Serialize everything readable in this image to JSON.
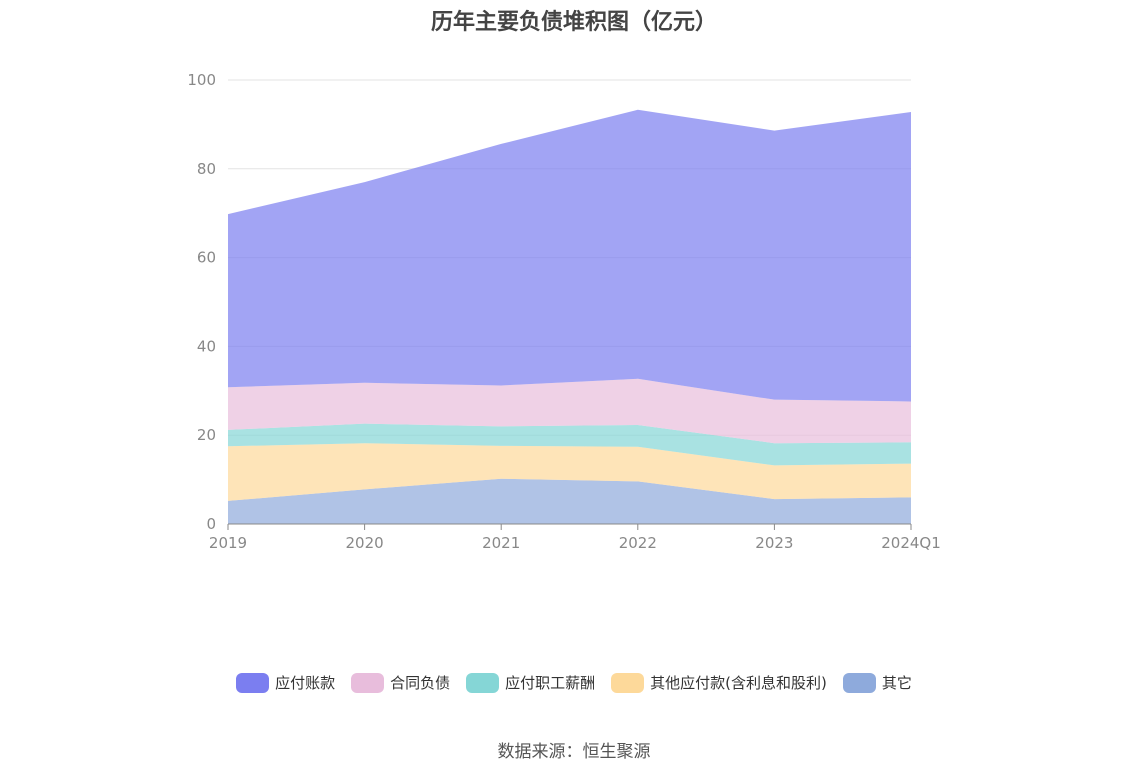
{
  "chart_data": {
    "type": "area",
    "stacked": true,
    "title": "历年主要负债堆积图（亿元）",
    "categories": [
      "2019",
      "2020",
      "2021",
      "2022",
      "2023",
      "2024Q1"
    ],
    "ylim": [
      0,
      100
    ],
    "yticks": [
      0,
      20,
      40,
      60,
      80,
      100
    ],
    "grid": true,
    "legend_position": "bottom",
    "series": [
      {
        "name": "其它",
        "color": "#8eaadc",
        "values": [
          5.2,
          7.8,
          10.2,
          9.6,
          5.6,
          6.0
        ]
      },
      {
        "name": "其他应付款(含利息和股利)",
        "color": "#fdd99a",
        "values": [
          12.3,
          10.4,
          7.4,
          7.8,
          7.6,
          7.6
        ]
      },
      {
        "name": "应付职工薪酬",
        "color": "#85d6d6",
        "values": [
          3.7,
          4.4,
          4.4,
          4.9,
          5.0,
          4.8
        ]
      },
      {
        "name": "合同负债",
        "color": "#e8bddc",
        "values": [
          9.6,
          9.2,
          9.2,
          10.4,
          9.8,
          9.2
        ]
      },
      {
        "name": "应付账款",
        "color": "#7b7ef0",
        "values": [
          39.0,
          45.2,
          54.4,
          60.6,
          60.6,
          65.2
        ]
      }
    ]
  },
  "legend_order": [
    "应付账款",
    "合同负债",
    "应付职工薪酬",
    "其他应付款(含利息和股利)",
    "其它"
  ],
  "source": "数据来源：恒生聚源"
}
